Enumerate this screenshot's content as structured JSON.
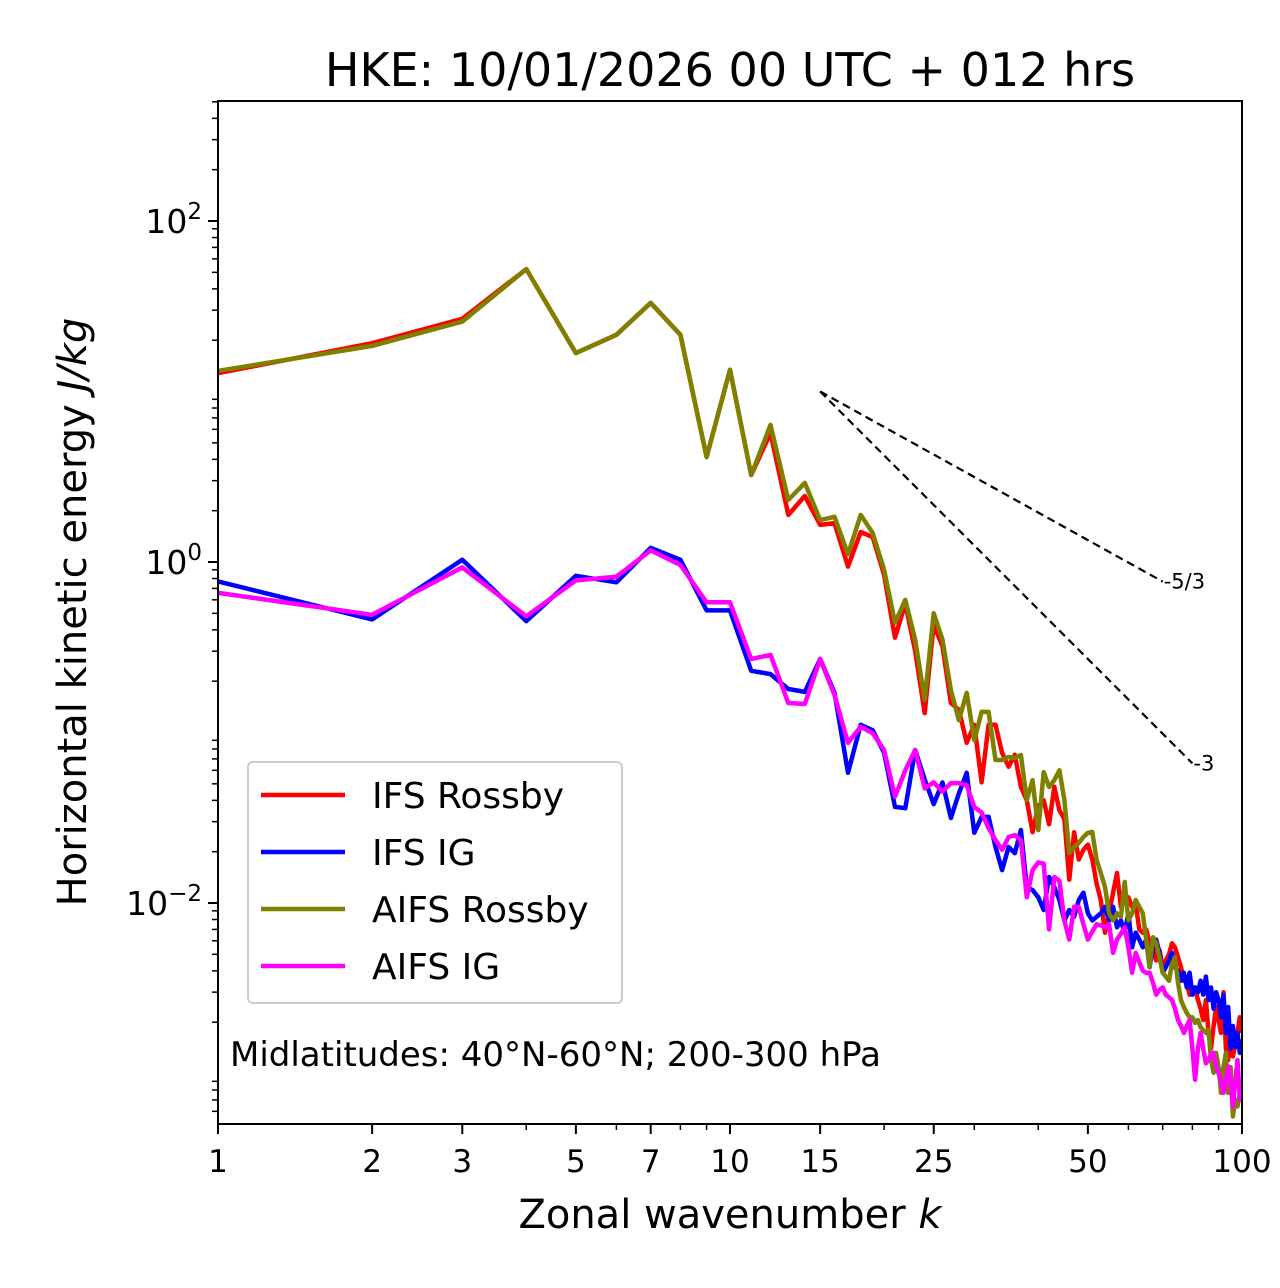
{
  "chart_data": {
    "type": "line",
    "title": "HKE: 10/01/2026 00 UTC + 012 hrs",
    "xlabel": "Zonal wavenumber",
    "xlabel_italic": "k",
    "ylabel": "Horizontal kinetic energy",
    "ylabel_italic": "J/kg",
    "xscale": "log",
    "yscale": "log",
    "xlim": [
      1,
      100
    ],
    "ylim": [
      0.0005,
      500
    ],
    "grid": false,
    "x_ticks": [
      1,
      2,
      3,
      5,
      7,
      10,
      15,
      25,
      50,
      100
    ],
    "x_tick_labels": [
      "1",
      "2",
      "3",
      "5",
      "7",
      "10",
      "15",
      "25",
      "50",
      "100"
    ],
    "y_ticks": [
      100,
      1,
      0.01
    ],
    "y_tick_labels": [
      {
        "base": "10",
        "exp": "2"
      },
      {
        "base": "10",
        "exp": "0"
      },
      {
        "base": "10",
        "exp": "−2"
      }
    ],
    "legend_placement": "lower-left",
    "annotation": "Midlatitudes: 40°N-60°N; 200-300 hPa",
    "reference_lines": [
      {
        "label": "-5/3",
        "slope": -1.6667,
        "k_start": 15,
        "k_end": 70,
        "E_start": 10
      },
      {
        "label": "-3",
        "slope": -3,
        "k_start": 15,
        "k_end": 80,
        "E_start": 10
      }
    ],
    "x": [
      1,
      2,
      3,
      4,
      5,
      6,
      7,
      8,
      9,
      10,
      11,
      12,
      13,
      14,
      15,
      16,
      17,
      18,
      19,
      20,
      21,
      22,
      23,
      24,
      25,
      26,
      27,
      28,
      29,
      30,
      31,
      32,
      33,
      34,
      35,
      36,
      37,
      38,
      39,
      40,
      41,
      42,
      43,
      44,
      45,
      46,
      47,
      48,
      49,
      50,
      51,
      52,
      53,
      54,
      55,
      56,
      57,
      58,
      59,
      60,
      61,
      62,
      63,
      64,
      65,
      66,
      67,
      68,
      69,
      70,
      71,
      72,
      73,
      74,
      75,
      76,
      77,
      78,
      79,
      80,
      81,
      82,
      83,
      84,
      85,
      86,
      87,
      88,
      89,
      90,
      91,
      92,
      93,
      94,
      95,
      96,
      97,
      98,
      99,
      100
    ],
    "series": [
      {
        "name": "IFS Rossby",
        "color": "#ff0000",
        "values": [
          12.8,
          19.2,
          26.7,
          52.2,
          16.8,
          21.5,
          33.1,
          21.5,
          4.13,
          13.4,
          3.24,
          5.7,
          1.89,
          2.44,
          1.65,
          1.69,
          0.94,
          1.5,
          1.4,
          0.84,
          0.36,
          0.57,
          0.3,
          0.13,
          0.43,
          0.32,
          0.149,
          0.136,
          0.087,
          0.111,
          0.051,
          0.111,
          0.111,
          0.076,
          0.063,
          0.074,
          0.048,
          0.04,
          0.026,
          0.037,
          0.04,
          0.029,
          0.048,
          0.035,
          0.031,
          0.0137,
          0.026,
          0.018,
          0.0205,
          0.022,
          0.018,
          0.013,
          0.0104,
          0.0067,
          0.0087,
          0.0115,
          0.015,
          0.0095,
          0.0104,
          0.0108,
          0.0095,
          0.0099,
          0.007,
          0.0067,
          0.007,
          0.0058,
          0.0055,
          0.0046,
          0.0053,
          0.0042,
          0.0046,
          0.005,
          0.0058,
          0.0055,
          0.0048,
          0.0042,
          0.0035,
          0.0034,
          0.0029,
          0.003,
          0.0032,
          0.0027,
          0.0024,
          0.00206,
          0.0027,
          0.00173,
          0.0014,
          0.0019,
          0.00245,
          0.00206,
          0.00173,
          0.003,
          0.0014,
          0.0012,
          0.00173,
          0.00126,
          0.00147,
          0.00173,
          0.00214,
          0.00173
        ]
      },
      {
        "name": "IFS IG",
        "color": "#0000ff",
        "values": [
          0.77,
          0.46,
          1.03,
          0.45,
          0.83,
          0.76,
          1.21,
          1.03,
          0.52,
          0.52,
          0.23,
          0.22,
          0.18,
          0.173,
          0.27,
          0.171,
          0.058,
          0.111,
          0.103,
          0.076,
          0.0366,
          0.036,
          0.079,
          0.053,
          0.038,
          0.051,
          0.0315,
          0.044,
          0.058,
          0.0258,
          0.032,
          0.032,
          0.0213,
          0.0156,
          0.0213,
          0.0196,
          0.0268,
          0.0124,
          0.0119,
          0.0108,
          0.0091,
          0.0142,
          0.0124,
          0.0104,
          0.0079,
          0.0091,
          0.0083,
          0.0104,
          0.0115,
          0.0087,
          0.0079,
          0.0083,
          0.0087,
          0.0095,
          0.0079,
          0.0095,
          0.0072,
          0.0079,
          0.0067,
          0.0087,
          0.0055,
          0.0067,
          0.0061,
          0.0055,
          0.0061,
          0.0042,
          0.0055,
          0.0061,
          0.0051,
          0.0039,
          0.0042,
          0.0046,
          0.0051,
          0.0042,
          0.004,
          0.0035,
          0.0039,
          0.0032,
          0.0039,
          0.0029,
          0.0032,
          0.003,
          0.0035,
          0.0029,
          0.0037,
          0.0027,
          0.0032,
          0.0024,
          0.003,
          0.0027,
          0.00214,
          0.0029,
          0.00173,
          0.00245,
          0.0014,
          0.0019,
          0.00143,
          0.00173,
          0.00132,
          0.00158
        ]
      },
      {
        "name": "AIFS Rossby",
        "color": "#808000",
        "values": [
          13.2,
          18.5,
          25.7,
          52.2,
          16.8,
          21.5,
          33.1,
          21.5,
          4.13,
          13.4,
          3.24,
          6.37,
          2.31,
          2.91,
          1.76,
          1.84,
          1.11,
          1.89,
          1.48,
          0.9,
          0.44,
          0.6,
          0.35,
          0.155,
          0.5,
          0.35,
          0.177,
          0.118,
          0.171,
          0.09,
          0.132,
          0.132,
          0.069,
          0.069,
          0.0718,
          0.0708,
          0.0738,
          0.0402,
          0.0526,
          0.0268,
          0.0586,
          0.0479,
          0.0526,
          0.06,
          0.0402,
          0.0196,
          0.0213,
          0.0225,
          0.0244,
          0.0258,
          0.0261,
          0.0179,
          0.015,
          0.0124,
          0.0087,
          0.0079,
          0.0087,
          0.0083,
          0.0133,
          0.0079,
          0.0087,
          0.0104,
          0.0095,
          0.0087,
          0.0061,
          0.0042,
          0.0063,
          0.0058,
          0.0048,
          0.0039,
          0.0037,
          0.0035,
          0.0044,
          0.0048,
          0.0034,
          0.0027,
          0.00245,
          0.00226,
          0.00214,
          0.00214,
          0.00198,
          0.00206,
          0.00187,
          0.0018,
          0.00173,
          0.0018,
          0.0012,
          0.00101,
          0.00132,
          0.00109,
          0.00077,
          0.00109,
          0.00132,
          0.00077,
          0.00109,
          0.00056,
          0.0007,
          0.00064,
          0.00077,
          0.0007
        ]
      },
      {
        "name": "AIFS IG",
        "color": "#ff00ff",
        "values": [
          0.66,
          0.49,
          0.93,
          0.48,
          0.78,
          0.82,
          1.17,
          0.96,
          0.58,
          0.58,
          0.27,
          0.285,
          0.149,
          0.147,
          0.27,
          0.166,
          0.087,
          0.108,
          0.099,
          0.079,
          0.042,
          0.06,
          0.079,
          0.047,
          0.051,
          0.045,
          0.0505,
          0.0505,
          0.049,
          0.0366,
          0.034,
          0.0275,
          0.0234,
          0.0205,
          0.0244,
          0.025,
          0.0234,
          0.0108,
          0.0156,
          0.0173,
          0.017,
          0.007,
          0.0142,
          0.0135,
          0.0079,
          0.0061,
          0.0095,
          0.0095,
          0.0075,
          0.0061,
          0.0068,
          0.0075,
          0.0074,
          0.0072,
          0.0075,
          0.0051,
          0.0061,
          0.0066,
          0.0072,
          0.0055,
          0.0039,
          0.0051,
          0.0045,
          0.004,
          0.0039,
          0.0039,
          0.0034,
          0.0029,
          0.0031,
          0.0032,
          0.0029,
          0.0028,
          0.0027,
          0.0024,
          0.00206,
          0.0019,
          0.00173,
          0.0019,
          0.00206,
          0.0014,
          0.00092,
          0.0014,
          0.00173,
          0.0014,
          0.00115,
          0.0012,
          0.0013,
          0.00132,
          0.0011,
          0.001,
          0.0009,
          0.00077,
          0.0009,
          0.0011,
          0.0009,
          0.00064,
          0.0009,
          0.0012,
          0.0007,
          0.00088
        ]
      }
    ]
  }
}
